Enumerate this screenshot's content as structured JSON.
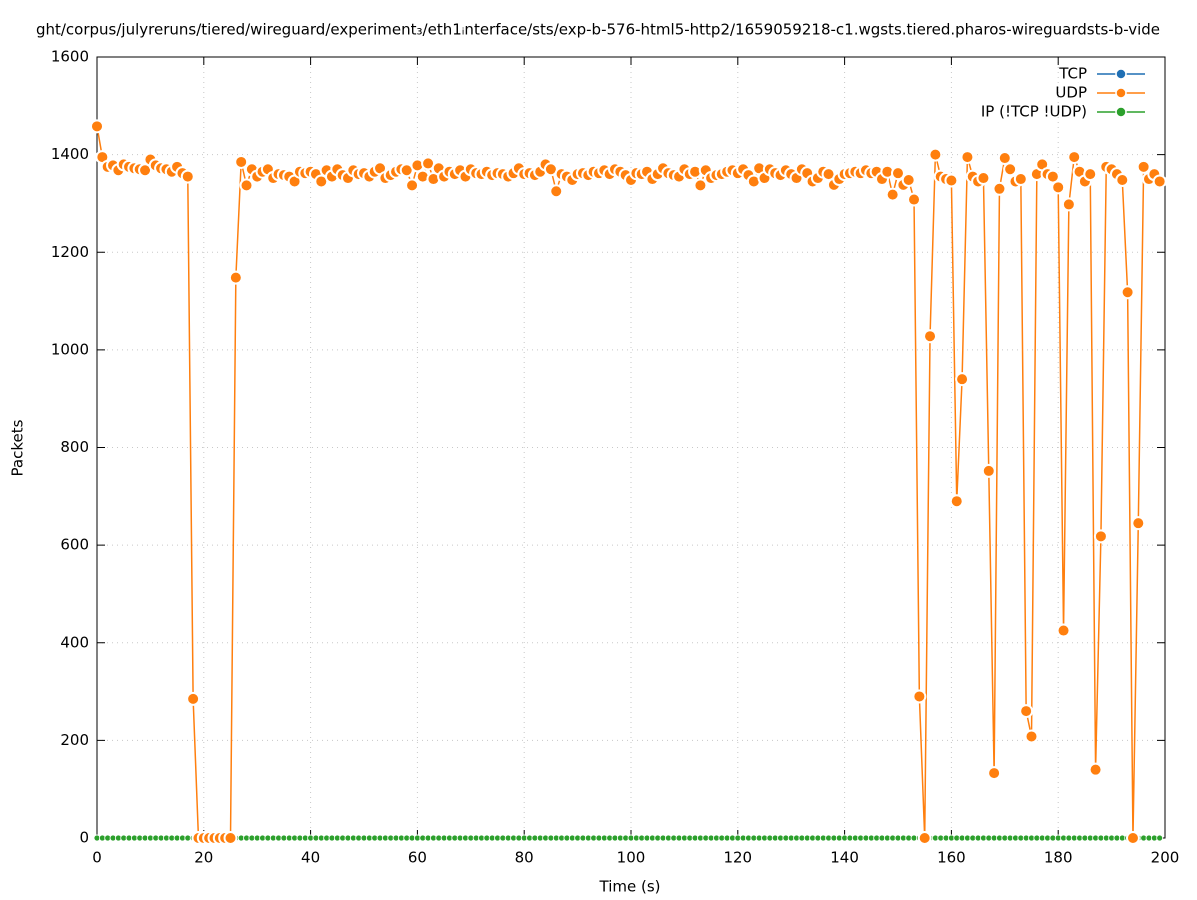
{
  "chart_data": {
    "type": "line",
    "title": "ght/corpus/julyreruns/tiered/wireguard/experiment₃/eth1ᵢnterface/sts/exp-b-576-html5-http2/1659059218-c1.wgsts.tiered.pharos-wireguardsts-b-vide",
    "x_label": "Time (s)",
    "y_label": "Packets",
    "xlim": [
      0,
      200
    ],
    "xticks": [
      0,
      20,
      40,
      60,
      80,
      100,
      120,
      140,
      160,
      180,
      200
    ],
    "ylim": [
      0,
      1600
    ],
    "yticks": [
      0,
      200,
      400,
      600,
      800,
      1000,
      1200,
      1400,
      1600
    ],
    "grid": true,
    "legend": "top-right",
    "x": [
      0,
      1,
      2,
      3,
      4,
      5,
      6,
      7,
      8,
      9,
      10,
      11,
      12,
      13,
      14,
      15,
      16,
      17,
      18,
      19,
      20,
      21,
      22,
      23,
      24,
      25,
      26,
      27,
      28,
      29,
      30,
      31,
      32,
      33,
      34,
      35,
      36,
      37,
      38,
      39,
      40,
      41,
      42,
      43,
      44,
      45,
      46,
      47,
      48,
      49,
      50,
      51,
      52,
      53,
      54,
      55,
      56,
      57,
      58,
      59,
      60,
      61,
      62,
      63,
      64,
      65,
      66,
      67,
      68,
      69,
      70,
      71,
      72,
      73,
      74,
      75,
      76,
      77,
      78,
      79,
      80,
      81,
      82,
      83,
      84,
      85,
      86,
      87,
      88,
      89,
      90,
      91,
      92,
      93,
      94,
      95,
      96,
      97,
      98,
      99,
      100,
      101,
      102,
      103,
      104,
      105,
      106,
      107,
      108,
      109,
      110,
      111,
      112,
      113,
      114,
      115,
      116,
      117,
      118,
      119,
      120,
      121,
      122,
      123,
      124,
      125,
      126,
      127,
      128,
      129,
      130,
      131,
      132,
      133,
      134,
      135,
      136,
      137,
      138,
      139,
      140,
      141,
      142,
      143,
      144,
      145,
      146,
      147,
      148,
      149,
      150,
      151,
      152,
      153,
      154,
      155,
      156,
      157,
      158,
      159,
      160,
      161,
      162,
      163,
      164,
      165,
      166,
      167,
      168,
      169,
      170,
      171,
      172,
      173,
      174,
      175,
      176,
      177,
      178,
      179,
      180,
      181,
      182,
      183,
      184,
      185,
      186,
      187,
      188,
      189,
      190,
      191,
      192,
      193,
      194,
      195,
      196,
      197,
      198,
      199
    ],
    "series": [
      {
        "name": "TCP",
        "color": "#1f6fb4",
        "values": [
          0,
          0,
          0,
          0,
          0,
          0,
          0,
          0,
          0,
          0,
          0,
          0,
          0,
          0,
          0,
          0,
          0,
          0,
          0,
          0,
          0,
          0,
          0,
          0,
          0,
          0,
          0,
          0,
          0,
          0,
          0,
          0,
          0,
          0,
          0,
          0,
          0,
          0,
          0,
          0,
          0,
          0,
          0,
          0,
          0,
          0,
          0,
          0,
          0,
          0,
          0,
          0,
          0,
          0,
          0,
          0,
          0,
          0,
          0,
          0,
          0,
          0,
          0,
          0,
          0,
          0,
          0,
          0,
          0,
          0,
          0,
          0,
          0,
          0,
          0,
          0,
          0,
          0,
          0,
          0,
          0,
          0,
          0,
          0,
          0,
          0,
          0,
          0,
          0,
          0,
          0,
          0,
          0,
          0,
          0,
          0,
          0,
          0,
          0,
          0,
          0,
          0,
          0,
          0,
          0,
          0,
          0,
          0,
          0,
          0,
          0,
          0,
          0,
          0,
          0,
          0,
          0,
          0,
          0,
          0,
          0,
          0,
          0,
          0,
          0,
          0,
          0,
          0,
          0,
          0,
          0,
          0,
          0,
          0,
          0,
          0,
          0,
          0,
          0,
          0,
          0,
          0,
          0,
          0,
          0,
          0,
          0,
          0,
          0,
          0,
          0,
          0,
          0,
          0,
          0,
          0,
          0,
          0,
          0,
          0,
          0,
          0,
          0,
          0,
          0,
          0,
          0,
          0,
          0,
          0,
          0,
          0,
          0,
          0,
          0,
          0,
          0,
          0,
          0,
          0,
          0,
          0,
          0,
          0,
          0,
          0,
          0,
          0,
          0,
          0,
          0,
          0,
          0,
          0,
          0,
          0,
          0,
          0,
          0,
          0
        ]
      },
      {
        "name": "UDP",
        "color": "#ff7f0e",
        "values": [
          1458,
          1395,
          1375,
          1378,
          1368,
          1380,
          1375,
          1372,
          1370,
          1368,
          1390,
          1378,
          1372,
          1370,
          1365,
          1375,
          1362,
          1355,
          285,
          0,
          0,
          0,
          0,
          0,
          0,
          0,
          1148,
          1385,
          1337,
          1370,
          1355,
          1365,
          1370,
          1352,
          1360,
          1358,
          1355,
          1345,
          1365,
          1362,
          1365,
          1360,
          1345,
          1368,
          1355,
          1370,
          1358,
          1352,
          1368,
          1360,
          1362,
          1355,
          1365,
          1372,
          1352,
          1358,
          1365,
          1370,
          1368,
          1337,
          1378,
          1355,
          1382,
          1350,
          1372,
          1355,
          1365,
          1360,
          1368,
          1355,
          1370,
          1362,
          1360,
          1365,
          1358,
          1362,
          1360,
          1355,
          1362,
          1372,
          1360,
          1362,
          1358,
          1365,
          1380,
          1370,
          1325,
          1360,
          1355,
          1348,
          1360,
          1362,
          1358,
          1365,
          1362,
          1368,
          1360,
          1370,
          1365,
          1358,
          1348,
          1362,
          1360,
          1365,
          1350,
          1360,
          1372,
          1362,
          1358,
          1355,
          1370,
          1360,
          1365,
          1337,
          1368,
          1352,
          1358,
          1360,
          1365,
          1368,
          1362,
          1370,
          1358,
          1345,
          1372,
          1352,
          1370,
          1362,
          1358,
          1368,
          1360,
          1352,
          1370,
          1362,
          1345,
          1352,
          1365,
          1360,
          1338,
          1350,
          1360,
          1362,
          1365,
          1362,
          1368,
          1362,
          1365,
          1350,
          1365,
          1318,
          1362,
          1338,
          1348,
          1308,
          290,
          0,
          1028,
          1400,
          1355,
          1350,
          1347,
          690,
          940,
          1395,
          1355,
          1345,
          1352,
          752,
          133,
          1330,
          1393,
          1370,
          1345,
          1350,
          260,
          208,
          1360,
          1380,
          1360,
          1355,
          1333,
          425,
          1298,
          1395,
          1365,
          1345,
          1360,
          140,
          618,
          1375,
          1370,
          1360,
          1348,
          1118,
          0,
          645,
          1375,
          1350,
          1360,
          1345
        ]
      },
      {
        "name": "IP (!TCP  !UDP)",
        "color": "#2ca02c",
        "values": [
          0,
          0,
          0,
          0,
          0,
          0,
          0,
          0,
          0,
          0,
          0,
          0,
          0,
          0,
          0,
          0,
          0,
          0,
          0,
          0,
          0,
          0,
          0,
          0,
          0,
          0,
          0,
          0,
          0,
          0,
          0,
          0,
          0,
          0,
          0,
          0,
          0,
          0,
          0,
          0,
          0,
          0,
          0,
          0,
          0,
          0,
          0,
          0,
          0,
          0,
          0,
          0,
          0,
          0,
          0,
          0,
          0,
          0,
          0,
          0,
          0,
          0,
          0,
          0,
          0,
          0,
          0,
          0,
          0,
          0,
          0,
          0,
          0,
          0,
          0,
          0,
          0,
          0,
          0,
          0,
          0,
          0,
          0,
          0,
          0,
          0,
          0,
          0,
          0,
          0,
          0,
          0,
          0,
          0,
          0,
          0,
          0,
          0,
          0,
          0,
          0,
          0,
          0,
          0,
          0,
          0,
          0,
          0,
          0,
          0,
          0,
          0,
          0,
          0,
          0,
          0,
          0,
          0,
          0,
          0,
          0,
          0,
          0,
          0,
          0,
          0,
          0,
          0,
          0,
          0,
          0,
          0,
          0,
          0,
          0,
          0,
          0,
          0,
          0,
          0,
          0,
          0,
          0,
          0,
          0,
          0,
          0,
          0,
          0,
          0,
          0,
          0,
          0,
          0,
          0,
          0,
          0,
          0,
          0,
          0,
          0,
          0,
          0,
          0,
          0,
          0,
          0,
          0,
          0,
          0,
          0,
          0,
          0,
          0,
          0,
          0,
          0,
          0,
          0,
          0,
          0,
          0,
          0,
          0,
          0,
          0,
          0,
          0,
          0,
          0,
          0,
          0,
          0,
          0,
          0,
          0,
          0,
          0,
          0,
          0
        ]
      }
    ]
  }
}
